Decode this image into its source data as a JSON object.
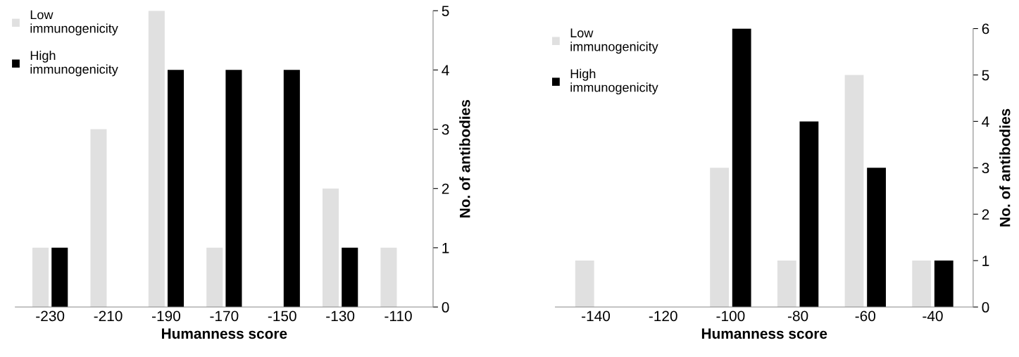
{
  "chart_data": [
    {
      "type": "bar",
      "xlabel": "Humanness score",
      "ylabel": "No. of antibodies",
      "categories": [
        "-230",
        "-210",
        "-190",
        "-170",
        "-150",
        "-130",
        "-110"
      ],
      "series": [
        {
          "name": "Low\nimmunogenicity",
          "color": "#e0e0e0",
          "values": [
            1,
            3,
            5,
            1,
            0,
            2,
            1
          ]
        },
        {
          "name": "High\nimmunogenicity",
          "color": "#000000",
          "values": [
            1,
            0,
            4,
            4,
            4,
            1,
            0
          ]
        }
      ],
      "ylim": [
        0,
        5
      ],
      "yticks": [
        0,
        1,
        2,
        3,
        4,
        5
      ],
      "grid": false,
      "legend": "top left"
    },
    {
      "type": "bar",
      "xlabel": "Humanness score",
      "ylabel": "No. of antibodies",
      "categories": [
        "-140",
        "-120",
        "-100",
        "-80",
        "-60",
        "-40"
      ],
      "series": [
        {
          "name": "Low\nimmunogenicity",
          "color": "#e0e0e0",
          "values": [
            1,
            0,
            3,
            1,
            5,
            1
          ]
        },
        {
          "name": "High\nimmunogenicity",
          "color": "#000000",
          "values": [
            0,
            0,
            6,
            4,
            3,
            1
          ]
        }
      ],
      "ylim": [
        0,
        6
      ],
      "yticks": [
        0,
        1,
        2,
        3,
        4,
        5,
        6
      ],
      "grid": false,
      "legend": "top left"
    }
  ]
}
